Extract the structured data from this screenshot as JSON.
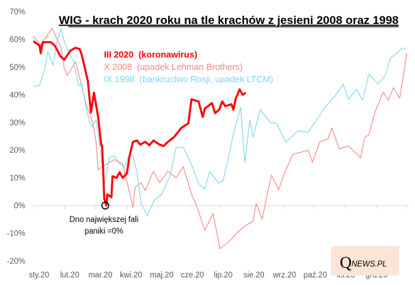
{
  "chart_data": {
    "type": "line",
    "title": "WIG - krach 2020 roku na tle krachów z jesieni 2008 oraz 1998",
    "xlabel": "",
    "ylabel": "",
    "ylim": [
      -20,
      70
    ],
    "yticks": [
      "70%",
      "60%",
      "50%",
      "40%",
      "30%",
      "20%",
      "10%",
      "0%",
      "-10%",
      "-20%"
    ],
    "ytick_values": [
      70,
      60,
      50,
      40,
      30,
      20,
      10,
      0,
      -10,
      -20
    ],
    "xticks": [
      "sty.20",
      "lut.20",
      "mar.20",
      "kwi.20",
      "maj.20",
      "cze.20",
      "lip.20",
      "sie.20",
      "wrz.20",
      "paź.20",
      "lis.20",
      "gru.20"
    ],
    "grid": false,
    "legend_position": "top-center",
    "series": [
      {
        "name": "III 2020  (koronawirus)",
        "color": "#ff0000",
        "x": [
          "2020-01-01",
          "2020-01-07",
          "2020-01-08",
          "2020-01-10",
          "2020-01-18",
          "2020-01-22",
          "2020-01-27",
          "2020-01-31",
          "2020-02-06",
          "2020-02-11",
          "2020-02-15",
          "2020-02-17",
          "2020-02-23",
          "2020-02-26",
          "2020-02-29",
          "2020-03-04",
          "2020-03-07",
          "2020-03-08",
          "2020-03-10",
          "2020-03-12",
          "2020-03-13",
          "2020-03-17",
          "2020-03-18",
          "2020-03-22",
          "2020-03-25",
          "2020-03-28",
          "2020-04-01",
          "2020-04-04",
          "2020-04-07",
          "2020-04-11",
          "2020-04-14",
          "2020-04-19",
          "2020-04-23",
          "2020-04-27",
          "2020-05-03",
          "2020-05-07",
          "2020-05-11",
          "2020-05-17",
          "2020-05-24",
          "2020-05-31",
          "2020-06-03",
          "2020-06-10",
          "2020-06-14",
          "2020-06-16",
          "2020-06-23",
          "2020-06-26",
          "2020-06-30",
          "2020-07-03",
          "2020-07-06",
          "2020-07-12",
          "2020-07-14",
          "2020-07-16",
          "2020-07-20",
          "2020-07-23",
          "2020-07-26"
        ],
        "y": [
          59.4,
          57.7,
          55,
          59,
          59,
          57.7,
          54,
          52.7,
          56,
          57,
          56.5,
          54.5,
          45,
          33.6,
          40.8,
          32,
          22,
          21.5,
          2.5,
          0,
          4,
          3,
          10.6,
          10,
          12,
          10,
          11.6,
          18.5,
          23,
          23.5,
          22,
          23,
          21.8,
          23.5,
          22,
          21.5,
          23,
          24.7,
          28,
          29.7,
          38.4,
          37.6,
          32,
          35,
          37,
          33.4,
          34.6,
          37.6,
          35.9,
          36.6,
          34.6,
          38.4,
          42,
          40,
          40.8
        ]
      },
      {
        "name": "X 2008  (upadek Lehman Brothers)",
        "color": "#ff8080",
        "x": [
          "2020-01-01",
          "2020-01-08",
          "2020-01-19",
          "2020-01-22",
          "2020-01-28",
          "2020-01-31",
          "2020-02-03",
          "2020-02-11",
          "2020-02-16",
          "2020-02-21",
          "2020-02-28",
          "2020-03-02",
          "2020-03-04",
          "2020-03-08",
          "2020-03-20",
          "2020-03-28",
          "2020-04-07",
          "2020-04-09",
          "2020-04-15",
          "2020-04-19",
          "2020-04-27",
          "2020-05-03",
          "2020-05-11",
          "2020-05-19",
          "2020-05-26",
          "2020-06-03",
          "2020-06-08",
          "2020-06-16",
          "2020-06-24",
          "2020-07-01",
          "2020-07-10",
          "2020-07-17",
          "2020-07-25",
          "2020-08-02",
          "2020-08-05",
          "2020-08-11",
          "2020-08-15",
          "2020-08-20",
          "2020-08-27",
          "2020-09-02",
          "2020-09-10",
          "2020-09-18",
          "2020-09-25",
          "2020-09-29",
          "2020-10-06",
          "2020-10-14",
          "2020-10-18",
          "2020-10-25",
          "2020-11-03",
          "2020-11-15",
          "2020-11-19",
          "2020-11-23",
          "2020-11-29",
          "2020-12-07",
          "2020-12-12",
          "2020-12-17",
          "2020-12-23",
          "2020-12-26",
          "2020-12-30"
        ],
        "y": [
          61,
          58,
          64,
          61.7,
          57,
          49.5,
          47,
          52,
          44.6,
          37,
          29.7,
          23,
          13,
          14,
          16.6,
          15,
          -0.7,
          6.7,
          8.2,
          5.4,
          12.4,
          8.2,
          12.4,
          10,
          14,
          4.2,
          0,
          -9,
          -2.9,
          -15.6,
          -13,
          -10,
          -7.4,
          -5.7,
          0.7,
          -4.9,
          2.5,
          11,
          5.7,
          12,
          18.5,
          19.3,
          20,
          15.6,
          23,
          24,
          28,
          20.5,
          21.5,
          17.3,
          24.7,
          25.5,
          33.8,
          41,
          38,
          42.6,
          38.8,
          45.3,
          55
        ]
      },
      {
        "name": "IX 1998  (bankructwo Rosji, upadek LTCM)",
        "color": "#7fd3f5",
        "x": [
          "2020-01-01",
          "2020-01-07",
          "2020-01-12",
          "2020-01-15",
          "2020-01-20",
          "2020-01-24",
          "2020-01-28",
          "2020-01-31",
          "2020-02-04",
          "2020-02-09",
          "2020-02-14",
          "2020-02-17",
          "2020-02-21",
          "2020-02-24",
          "2020-02-27",
          "2020-03-02",
          "2020-03-06",
          "2020-03-10",
          "2020-03-15",
          "2020-03-20",
          "2020-03-25",
          "2020-03-30",
          "2020-04-04",
          "2020-04-07",
          "2020-04-11",
          "2020-04-15",
          "2020-04-21",
          "2020-04-28",
          "2020-05-05",
          "2020-05-13",
          "2020-05-19",
          "2020-05-26",
          "2020-06-03",
          "2020-06-10",
          "2020-06-16",
          "2020-06-21",
          "2020-06-29",
          "2020-07-04",
          "2020-07-10",
          "2020-07-14",
          "2020-07-21",
          "2020-07-25",
          "2020-07-30",
          "2020-08-02",
          "2020-08-09",
          "2020-08-19",
          "2020-08-25",
          "2020-09-03",
          "2020-09-15",
          "2020-09-25",
          "2020-10-11",
          "2020-10-21",
          "2020-10-29",
          "2020-11-03",
          "2020-11-11",
          "2020-11-17",
          "2020-11-23",
          "2020-12-02",
          "2020-12-09",
          "2020-12-14",
          "2020-12-22",
          "2020-12-26",
          "2020-12-29"
        ],
        "y": [
          43,
          43.5,
          49.5,
          55.7,
          50.7,
          59.4,
          63.8,
          59.4,
          55.7,
          52,
          43.3,
          44,
          36,
          31,
          28.5,
          31,
          21,
          7,
          17.3,
          18,
          15,
          14,
          19,
          18,
          12,
          0.7,
          -3.7,
          2,
          4,
          10.6,
          21,
          21,
          14.9,
          8,
          6,
          12.4,
          8.2,
          9,
          19,
          26,
          35.4,
          15.6,
          31,
          24.7,
          34.6,
          30,
          29.7,
          22.8,
          27,
          26.5,
          35.4,
          39.6,
          43.8,
          38.4,
          42,
          38,
          47.5,
          44,
          47,
          53.2,
          55.7,
          57,
          56.4
        ]
      }
    ],
    "annotations": [
      {
        "text_line1": "Dno największej fali",
        "text_line2": "paniki =0%",
        "x": "2020-03-12",
        "y": 0
      }
    ]
  },
  "logo": {
    "q": "Q",
    "rest": "NEWS.PL",
    "background": "#fce4d6"
  }
}
